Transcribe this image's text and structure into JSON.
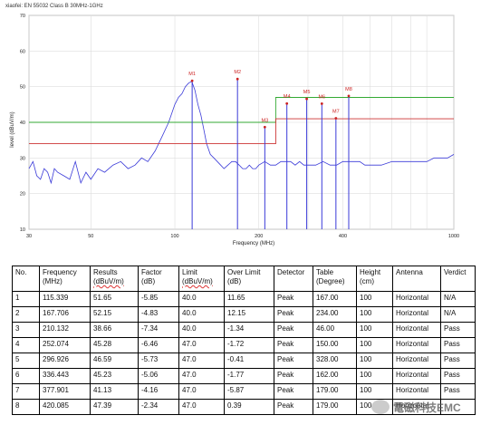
{
  "chart_data": {
    "type": "line",
    "title": "xiaofei: EN 55032 Class B 30MHz-1GHz",
    "xlabel": "Frequency (MHz)",
    "ylabel": "level (dBuV/m)",
    "xscale": "log",
    "xlim": [
      30,
      1000
    ],
    "ylim": [
      10,
      70
    ],
    "xticks": [
      30,
      50,
      100,
      200,
      300,
      400,
      500,
      600,
      700,
      800,
      1000
    ],
    "xtick_labels": [
      "30",
      "50",
      "100",
      "200",
      "",
      "400",
      "",
      "",
      "",
      "",
      "1000"
    ],
    "yticks": [
      10,
      20,
      30,
      40,
      50,
      60,
      70
    ],
    "grid": true,
    "colors": {
      "trace": "#3a3ad8",
      "limit_upper": "#33aa33",
      "limit_lower": "#cc3333",
      "marker": "#cc2222"
    },
    "series": [
      {
        "role": "trace",
        "x": [
          30,
          31,
          32,
          33,
          34,
          35,
          36,
          37,
          38,
          40,
          42,
          44,
          46,
          48,
          50,
          53,
          56,
          60,
          64,
          68,
          72,
          76,
          80,
          85,
          90,
          95,
          100,
          103,
          106,
          109,
          112,
          115,
          118,
          121,
          124,
          127,
          130,
          134,
          138,
          142,
          146,
          150,
          155,
          160,
          165,
          170,
          175,
          180,
          185,
          190,
          195,
          200,
          210,
          220,
          230,
          240,
          250,
          260,
          270,
          280,
          290,
          300,
          320,
          340,
          360,
          380,
          400,
          420,
          440,
          460,
          480,
          500,
          550,
          600,
          650,
          700,
          750,
          800,
          850,
          900,
          950,
          1000
        ],
        "y": [
          27,
          29,
          25,
          24,
          27,
          26,
          23,
          27,
          26,
          25,
          24,
          29,
          23,
          26,
          24,
          27,
          26,
          28,
          29,
          27,
          28,
          30,
          29,
          32,
          36,
          40,
          45,
          47,
          48,
          50,
          51,
          51.5,
          49,
          45,
          42,
          38,
          34,
          31,
          30,
          29,
          28,
          27,
          28,
          29,
          29,
          28,
          27,
          27,
          28,
          27,
          27,
          28,
          29,
          28,
          28,
          29,
          29,
          29,
          28,
          29,
          28,
          28,
          28,
          29,
          28,
          28,
          29,
          29,
          29,
          29,
          28,
          28,
          28,
          29,
          29,
          29,
          29,
          29,
          30,
          30,
          30,
          31
        ]
      },
      {
        "role": "limit_upper",
        "x": [
          30,
          230,
          230,
          1000
        ],
        "y": [
          40,
          40,
          47,
          47
        ]
      },
      {
        "role": "limit_lower",
        "x": [
          30,
          230,
          230,
          1000
        ],
        "y": [
          34,
          34,
          41,
          41
        ]
      }
    ],
    "markers": [
      {
        "label": "M1",
        "x": 115.339,
        "y": 51.65
      },
      {
        "label": "M2",
        "x": 167.706,
        "y": 52.15
      },
      {
        "label": "M3",
        "x": 210.132,
        "y": 38.66
      },
      {
        "label": "M4",
        "x": 252.074,
        "y": 45.28
      },
      {
        "label": "M5",
        "x": 296.926,
        "y": 46.59
      },
      {
        "label": "M6",
        "x": 336.443,
        "y": 45.23
      },
      {
        "label": "M7",
        "x": 377.901,
        "y": 41.13
      },
      {
        "label": "M8",
        "x": 420.085,
        "y": 47.39
      }
    ]
  },
  "table": {
    "headers": [
      {
        "main": "No.",
        "unit": ""
      },
      {
        "main": "Frequency",
        "unit": "(MHz)"
      },
      {
        "main": "Results",
        "unit": "(dBuV/m)"
      },
      {
        "main": "Factor",
        "unit": "(dB)"
      },
      {
        "main": "Limit",
        "unit": "(dBuV/m)"
      },
      {
        "main": "Over Limit",
        "unit": "(dB)"
      },
      {
        "main": "Detector",
        "unit": ""
      },
      {
        "main": "Table",
        "unit": "(Degree)"
      },
      {
        "main": "Height",
        "unit": "(cm)"
      },
      {
        "main": "Antenna",
        "unit": ""
      },
      {
        "main": "Verdict",
        "unit": ""
      }
    ],
    "rows": [
      [
        "1",
        "115.339",
        "51.65",
        "-5.85",
        "40.0",
        "11.65",
        "Peak",
        "167.00",
        "100",
        "Horizontal",
        "N/A"
      ],
      [
        "2",
        "167.706",
        "52.15",
        "-4.83",
        "40.0",
        "12.15",
        "Peak",
        "234.00",
        "100",
        "Horizontal",
        "N/A"
      ],
      [
        "3",
        "210.132",
        "38.66",
        "-7.34",
        "40.0",
        "-1.34",
        "Peak",
        "46.00",
        "100",
        "Horizontal",
        "Pass"
      ],
      [
        "4",
        "252.074",
        "45.28",
        "-6.46",
        "47.0",
        "-1.72",
        "Peak",
        "150.00",
        "100",
        "Horizontal",
        "Pass"
      ],
      [
        "5",
        "296.926",
        "46.59",
        "-5.73",
        "47.0",
        "-0.41",
        "Peak",
        "328.00",
        "100",
        "Horizontal",
        "Pass"
      ],
      [
        "6",
        "336.443",
        "45.23",
        "-5.06",
        "47.0",
        "-1.77",
        "Peak",
        "162.00",
        "100",
        "Horizontal",
        "Pass"
      ],
      [
        "7",
        "377.901",
        "41.13",
        "-4.16",
        "47.0",
        "-5.87",
        "Peak",
        "179.00",
        "100",
        "Horizontal",
        "Pass"
      ],
      [
        "8",
        "420.085",
        "47.39",
        "-2.34",
        "47.0",
        "0.39",
        "Peak",
        "179.00",
        "100",
        "Horizontal",
        ""
      ]
    ]
  },
  "watermark": {
    "text": "電磁科技EMC",
    "icon": "wechat-icon"
  }
}
